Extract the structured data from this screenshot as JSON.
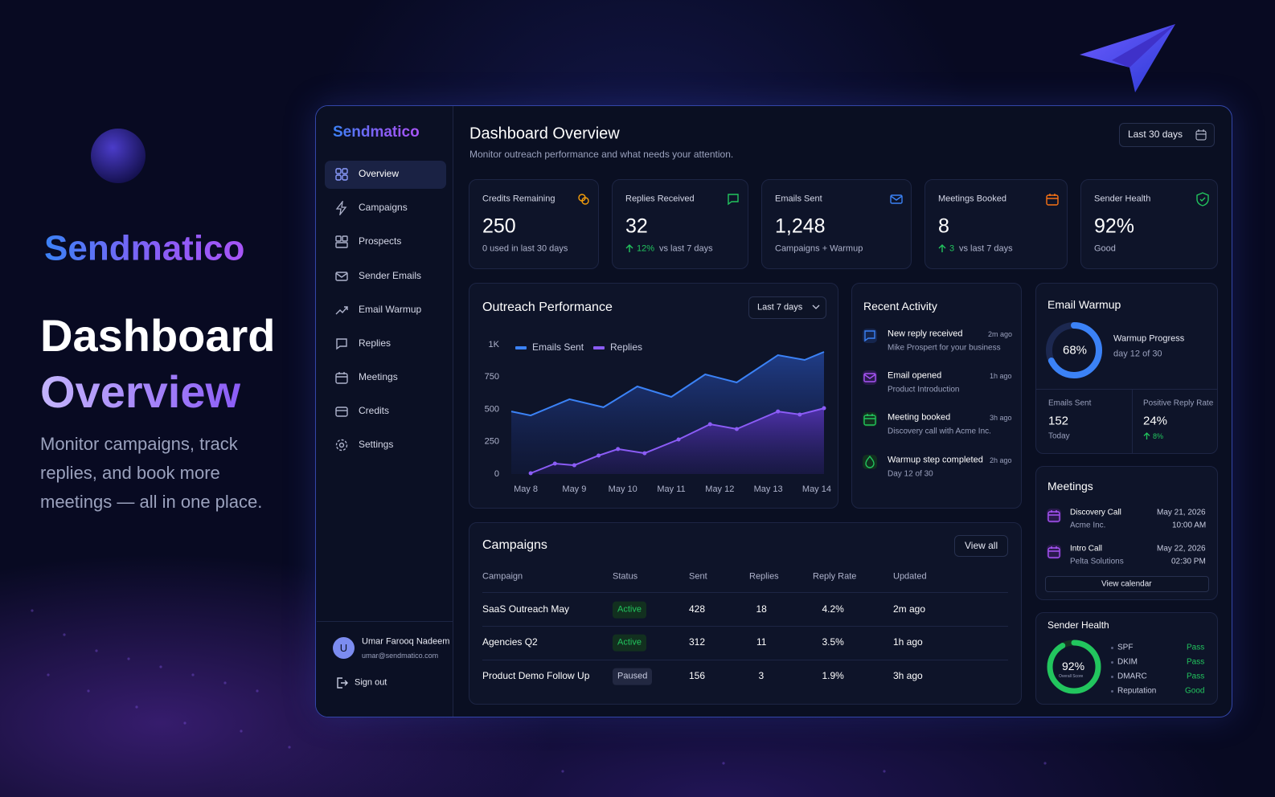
{
  "hero": {
    "logo": "Sendmatico",
    "title_line1": "Dashboard",
    "title_line2": "Overview",
    "subtitle": "Monitor campaigns, track replies, and book more meetings — all in one place."
  },
  "sidebar": {
    "logo": "Sendmatico",
    "nav": [
      "Overview",
      "Campaigns",
      "Prospects",
      "Sender Emails",
      "Email Warmup",
      "Replies",
      "Meetings",
      "Credits",
      "Settings"
    ],
    "user": {
      "initial": "U",
      "name": "Umar Farooq Nadeem",
      "email": "umar@sendmatico.com"
    },
    "sign_out": "Sign out"
  },
  "header": {
    "title": "Dashboard Overview",
    "subtitle": "Monitor outreach performance and what needs your attention.",
    "range": "Last 30 days"
  },
  "stats": [
    {
      "label": "Credits Remaining",
      "value": "250",
      "note": "0 used in last 30 days"
    },
    {
      "label": "Replies Received",
      "value": "32",
      "change": "12%",
      "note": "vs last 7 days"
    },
    {
      "label": "Emails Sent",
      "value": "1,248",
      "note": "Campaigns + Warmup"
    },
    {
      "label": "Meetings Booked",
      "value": "8",
      "change": "3",
      "note": "vs last 7 days"
    },
    {
      "label": "Sender Health",
      "value": "92%",
      "note": "Good"
    }
  ],
  "chart_data": {
    "type": "area",
    "title": "Outreach Performance",
    "range": "Last 7 days",
    "xlim": [
      7.7,
      14.15
    ],
    "xticks": [
      {
        "value": 8,
        "label": "May 8"
      },
      {
        "value": 9,
        "label": "May 9"
      },
      {
        "value": 10,
        "label": "May 10"
      },
      {
        "value": 11,
        "label": "May 11"
      },
      {
        "value": 12,
        "label": "May 12"
      },
      {
        "value": 13,
        "label": "May 13"
      },
      {
        "value": 14,
        "label": "May 14"
      }
    ],
    "ylim": [
      0,
      1000
    ],
    "yticks": [
      0,
      250,
      500,
      750,
      {
        "value": 1000,
        "label": "1K"
      }
    ],
    "grid": false,
    "series": [
      {
        "name": "Emails Sent",
        "color": "#3b82f6",
        "x": [
          7.7,
          8.1,
          8.9,
          9.6,
          10.3,
          11.0,
          11.7,
          12.35,
          13.2,
          13.75,
          14.15
        ],
        "values": [
          484,
          453,
          578,
          516,
          677,
          596,
          770,
          708,
          919,
          882,
          944
        ]
      },
      {
        "name": "Replies",
        "color": "#8b5cf6",
        "x": [
          8.1,
          8.6,
          9.0,
          9.5,
          9.9,
          10.45,
          11.15,
          11.8,
          12.35,
          13.2,
          13.65,
          14.15
        ],
        "values": [
          6,
          81,
          68,
          143,
          193,
          161,
          267,
          385,
          348,
          484,
          460,
          509
        ]
      }
    ]
  },
  "activity": {
    "title": "Recent Activity",
    "items": [
      {
        "title": "New reply received",
        "detail": "Mike Prospert for your business",
        "time": "2m ago"
      },
      {
        "title": "Email opened",
        "detail": "Product Introduction",
        "time": "1h ago"
      },
      {
        "title": "Meeting booked",
        "detail": "Discovery call with Acme Inc.",
        "time": "3h ago"
      },
      {
        "title": "Warmup step completed",
        "detail": "Day 12 of 30",
        "time": "2h ago"
      }
    ]
  },
  "warmup": {
    "title": "Email Warmup",
    "progress": {
      "value": 68,
      "label": "68%"
    },
    "progress_title": "Warmup Progress",
    "progress_note": "day 12 of 30",
    "metrics": [
      {
        "label": "Emails Sent",
        "value": "152",
        "note": "Today"
      },
      {
        "label": "Positive Reply Rate",
        "value": "24%",
        "change": "8%"
      }
    ]
  },
  "campaigns": {
    "title": "Campaigns",
    "action": "View all",
    "columns": [
      "Campaign",
      "Status",
      "Sent",
      "Replies",
      "Reply Rate",
      "Updated"
    ],
    "rows": [
      [
        "SaaS Outreach May",
        "Active",
        "428",
        "18",
        "4.2%",
        "2m ago"
      ],
      [
        "Agencies Q2",
        "Active",
        "312",
        "11",
        "3.5%",
        "1h ago"
      ],
      [
        "Product Demo Follow Up",
        "Paused",
        "156",
        "3",
        "1.9%",
        "3h ago"
      ]
    ]
  },
  "meetings": {
    "title": "Meetings",
    "items": [
      {
        "title": "Discovery Call",
        "company": "Acme Inc.",
        "date": "May 21, 2026",
        "time": "10:00 AM"
      },
      {
        "title": "Intro Call",
        "company": "Pelta Solutions",
        "date": "May 22, 2026",
        "time": "02:30 PM"
      }
    ],
    "action": "View calendar"
  },
  "sender_health": {
    "title": "Sender Health",
    "score": {
      "value": 92,
      "label": "92%"
    },
    "score_caption": "Overall Score",
    "checks": [
      {
        "name": "SPF",
        "result": "Pass"
      },
      {
        "name": "DKIM",
        "result": "Pass"
      },
      {
        "name": "DMARC",
        "result": "Pass"
      },
      {
        "name": "Reputation",
        "result": "Good"
      }
    ]
  }
}
